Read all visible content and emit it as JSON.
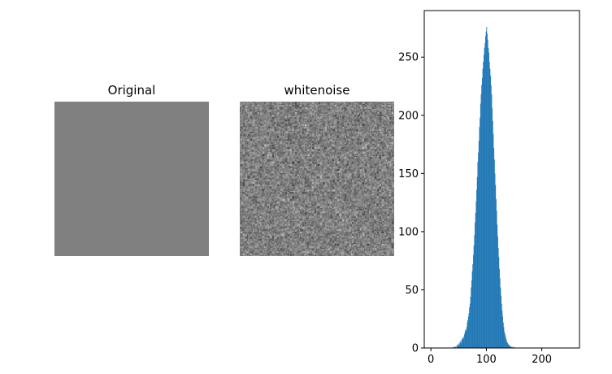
{
  "figure": {
    "panels": [
      {
        "title": "Original",
        "image": {
          "kind": "uniform-gray",
          "value": 128
        }
      },
      {
        "title": "whitenoise",
        "image": {
          "kind": "gaussian-noise",
          "mean": 128,
          "std": 25
        }
      }
    ]
  },
  "chart_data": {
    "type": "bar",
    "title": "",
    "xlabel": "",
    "ylabel": "",
    "color": "#1f77b4",
    "xlim": [
      -12,
      268
    ],
    "ylim": [
      0,
      290
    ],
    "x_ticks": [
      0,
      100,
      200
    ],
    "y_ticks": [
      0,
      50,
      100,
      150,
      200,
      250
    ],
    "bins": {
      "start": 40,
      "step": 1
    },
    "values": [
      1,
      0,
      1,
      1,
      1,
      0,
      2,
      2,
      3,
      2,
      4,
      3,
      5,
      6,
      4,
      7,
      8,
      9,
      8,
      10,
      12,
      14,
      16,
      15,
      18,
      22,
      24,
      27,
      30,
      35,
      38,
      44,
      52,
      58,
      66,
      72,
      80,
      88,
      97,
      108,
      116,
      126,
      136,
      147,
      160,
      168,
      178,
      190,
      198,
      210,
      218,
      226,
      232,
      240,
      246,
      252,
      258,
      262,
      268,
      272,
      276,
      270,
      265,
      258,
      254,
      246,
      240,
      234,
      226,
      218,
      206,
      195,
      184,
      172,
      162,
      150,
      140,
      128,
      118,
      106,
      96,
      86,
      78,
      68,
      60,
      52,
      45,
      38,
      32,
      27,
      22,
      18,
      14,
      12,
      10,
      8,
      6,
      5,
      4,
      3,
      3,
      2,
      2,
      1,
      1,
      1,
      0,
      1,
      0,
      1
    ]
  }
}
